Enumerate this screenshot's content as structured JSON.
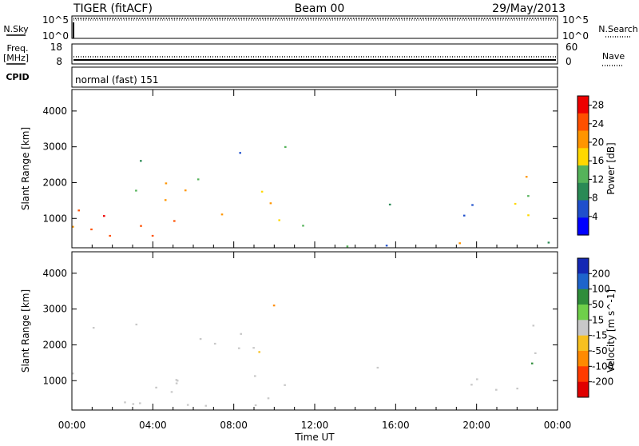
{
  "header": {
    "title": "TIGER (fitACF)",
    "beam": "Beam 00",
    "date": "29/May/2013"
  },
  "strips": {
    "nsky_label": "N.Sky",
    "nsearch_label": "N.Search",
    "nsky_ticks": [
      "10^5",
      "10^0"
    ],
    "nsearch_ticks": [
      "10^5",
      "10^0"
    ],
    "freq_label": "Freq.",
    "freq_unit": "[MHz]",
    "freq_ticks": [
      "18",
      "8"
    ],
    "nave_label": "Nave",
    "nave_ticks": [
      "60",
      "0"
    ],
    "cpid_label": "CPID",
    "cpid_text": "normal (fast) 151"
  },
  "chart_data": [
    {
      "type": "heatmap",
      "parameter": "Power",
      "ylabel": "Slant Range [km]",
      "xlabel": "Time UT",
      "x_ticks": [
        "00:00",
        "04:00",
        "08:00",
        "12:00",
        "16:00",
        "20:00",
        "00:00"
      ],
      "x_range_hours": [
        0,
        24
      ],
      "ylim": [
        180,
        4600
      ],
      "y_ticks": [
        1000,
        2000,
        3000,
        4000
      ],
      "colorbar": {
        "label": "Power [dB]",
        "ticks": [
          4,
          8,
          12,
          16,
          20,
          24,
          28
        ],
        "range": [
          0,
          30
        ],
        "colors": [
          "#0000ff",
          "#1f4fcc",
          "#2a8a55",
          "#55b35a",
          "#ffd800",
          "#ff9500",
          "#ff5000",
          "#ee0000"
        ]
      }
    },
    {
      "type": "heatmap",
      "parameter": "Velocity",
      "ylabel": "Slant Range [km]",
      "xlabel": "Time UT",
      "x_ticks": [
        "00:00",
        "04:00",
        "08:00",
        "12:00",
        "16:00",
        "20:00",
        "00:00"
      ],
      "x_range_hours": [
        0,
        24
      ],
      "ylim": [
        180,
        4600
      ],
      "y_ticks": [
        1000,
        2000,
        3000,
        4000
      ],
      "colorbar": {
        "label": "Velocity [m s^-1]",
        "ticks": [
          200,
          100,
          50,
          15,
          -15,
          -50,
          -100,
          -200
        ],
        "range": [
          -250,
          250
        ],
        "colors": [
          "#1428b4",
          "#1e64cc",
          "#2f8d3a",
          "#6fcf4a",
          "#c8c8c8",
          "#f7c020",
          "#ff8a00",
          "#ff3b00",
          "#e00000"
        ]
      }
    }
  ],
  "echo_regions": [
    {
      "t0": 0.0,
      "t1": 6.5,
      "r0": 300,
      "r1": 1400,
      "power": 24,
      "vel": 0
    },
    {
      "t0": 0.3,
      "t1": 6.0,
      "r0": 800,
      "r1": 1200,
      "power": 28,
      "vel": 0
    },
    {
      "t0": 2.0,
      "t1": 5.5,
      "r0": 300,
      "r1": 800,
      "power": 26,
      "vel": 0
    },
    {
      "t0": 4.5,
      "t1": 10.0,
      "r0": 1000,
      "r1": 2400,
      "power": 18,
      "vel": -10
    },
    {
      "t0": 6.5,
      "t1": 9.5,
      "r0": 1600,
      "r1": 2200,
      "power": 22,
      "vel": -40
    },
    {
      "t0": 7.0,
      "t1": 11.0,
      "r0": 500,
      "r1": 1000,
      "power": 14,
      "vel": 0
    },
    {
      "t0": 7.5,
      "t1": 10.5,
      "r0": 2300,
      "r1": 3200,
      "power": 12,
      "vel": -60
    },
    {
      "t0": 0.5,
      "t1": 3.5,
      "r0": 1800,
      "r1": 2800,
      "power": 10,
      "vel": 20
    },
    {
      "t0": 9.0,
      "t1": 11.5,
      "r0": 600,
      "r1": 1000,
      "power": 12,
      "vel": 0
    },
    {
      "t0": 14.8,
      "t1": 16.5,
      "r0": 900,
      "r1": 1500,
      "power": 10,
      "vel": 0
    },
    {
      "t0": 16.5,
      "t1": 20.0,
      "r0": 800,
      "r1": 1400,
      "power": 8,
      "vel": 0
    },
    {
      "t0": 19.0,
      "t1": 21.5,
      "r0": 300,
      "r1": 900,
      "power": 16,
      "vel": -30
    },
    {
      "t0": 19.3,
      "t1": 20.5,
      "r0": 300,
      "r1": 600,
      "power": 28,
      "vel": -40
    },
    {
      "t0": 21.6,
      "t1": 24.0,
      "r0": 800,
      "r1": 2600,
      "power": 16,
      "vel": 60
    },
    {
      "t0": 21.7,
      "t1": 23.0,
      "r0": 800,
      "r1": 2300,
      "power": 26,
      "vel": 50
    },
    {
      "t0": 0.0,
      "t1": 24.0,
      "r0": 180,
      "r1": 350,
      "power": 8,
      "vel": -10
    }
  ]
}
